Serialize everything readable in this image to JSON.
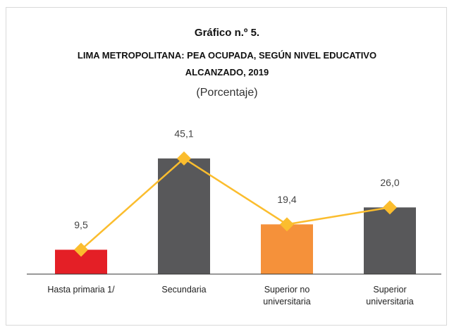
{
  "chart_data": {
    "type": "bar",
    "title": "Gráfico n.º 5.",
    "subtitle": "LIMA METROPOLITANA: PEA OCUPADA, SEGÚN NIVEL EDUCATIVO ALCANZADO, 2019",
    "unit_label": "(Porcentaje)",
    "categories": [
      "Hasta primaria 1/",
      "Secundaria",
      "Superior no universitaria",
      "Superior universitaria"
    ],
    "values": [
      9.5,
      45.1,
      19.4,
      26.0
    ],
    "value_labels": [
      "9,5",
      "45,1",
      "19,4",
      "26,0"
    ],
    "colors": [
      "#e41f26",
      "#58585a",
      "#f5913a",
      "#58585a"
    ],
    "line_color": "#fbbd2e"
  }
}
